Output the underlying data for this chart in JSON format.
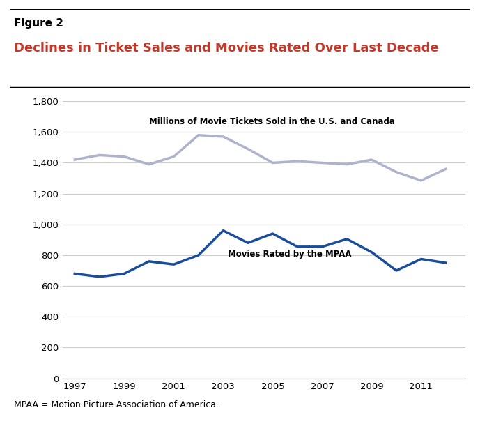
{
  "years": [
    1997,
    1998,
    1999,
    2000,
    2001,
    2002,
    2003,
    2004,
    2005,
    2006,
    2007,
    2008,
    2009,
    2010,
    2011,
    2012
  ],
  "tickets": [
    1420,
    1450,
    1440,
    1390,
    1440,
    1580,
    1570,
    1490,
    1400,
    1410,
    1400,
    1390,
    1420,
    1340,
    1285,
    1360
  ],
  "mpaa": [
    680,
    660,
    680,
    760,
    740,
    800,
    960,
    880,
    940,
    855,
    855,
    905,
    820,
    700,
    775,
    750
  ],
  "tickets_color": "#adb3cc",
  "mpaa_color": "#1a4d99",
  "figure_label": "Figure 2",
  "title": "Declines in Ticket Sales and Movies Rated Over Last Decade",
  "title_color": "#c0392b",
  "tickets_label": "Millions of Movie Tickets Sold in the U.S. and Canada",
  "mpaa_label": "Movies Rated by the MPAA",
  "footnote": "MPAA = Motion Picture Association of America.",
  "ylim": [
    0,
    1800
  ],
  "yticks": [
    0,
    200,
    400,
    600,
    800,
    1000,
    1200,
    1400,
    1600,
    1800
  ],
  "xtick_labels": [
    "1997",
    "1999",
    "2001",
    "2003",
    "2005",
    "2007",
    "2009",
    "2011"
  ],
  "xtick_positions": [
    1997,
    1999,
    2001,
    2003,
    2005,
    2007,
    2009,
    2011
  ],
  "line_width": 2.5,
  "bg_color": "#ffffff",
  "grid_color": "#cccccc"
}
